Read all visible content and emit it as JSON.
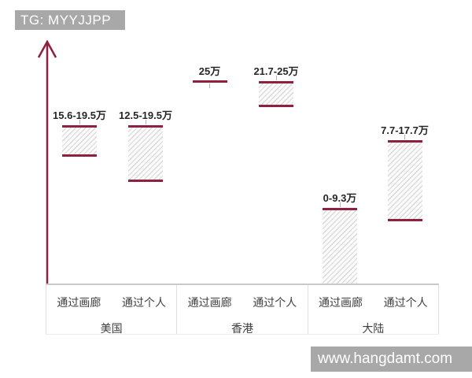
{
  "watermarks": {
    "top": "TG: MYYJJPP",
    "bottom": "www.hangdamt.com"
  },
  "icons": {
    "axis_arrow": "up-arrow"
  },
  "colors": {
    "maroon": "#8e2140",
    "watermark_bg": "#a8a8a8",
    "hatch_line": "#d9d9d9",
    "hatch_bg": "#fbfbfb",
    "table_border": "#dedede",
    "baseline": "#c9c9c9",
    "label_text": "#262626",
    "axis_text": "#3f3f3f"
  },
  "chart_data": {
    "type": "bar",
    "subtype": "floating-range-bar",
    "title": "",
    "xlabel": "",
    "ylabel": "",
    "value_unit": "万",
    "ylim": [
      0,
      27
    ],
    "grid": false,
    "y_axis_style": "unlabeled arrow pointing up",
    "fill_style": "diagonal hatch with maroon top/bottom edges",
    "groups": [
      {
        "region": "美国",
        "bars": [
          {
            "method": "通过画廊",
            "label": "15.6-19.5万",
            "min": 15.6,
            "max": 19.5
          },
          {
            "method": "通过个人",
            "label": "12.5-19.5万",
            "min": 12.5,
            "max": 19.5
          }
        ]
      },
      {
        "region": "香港",
        "bars": [
          {
            "method": "通过画廊",
            "label": "25万",
            "min": 25,
            "max": 25
          },
          {
            "method": "通过个人",
            "label": "21.7-25万",
            "min": 21.7,
            "max": 25
          }
        ]
      },
      {
        "region": "大陆",
        "bars": [
          {
            "method": "通过画廊",
            "label": "0-9.3万",
            "min": 0,
            "max": 9.3
          },
          {
            "method": "通过个人",
            "label": "7.7-17.7万",
            "min": 7.7,
            "max": 17.7
          }
        ]
      }
    ]
  }
}
